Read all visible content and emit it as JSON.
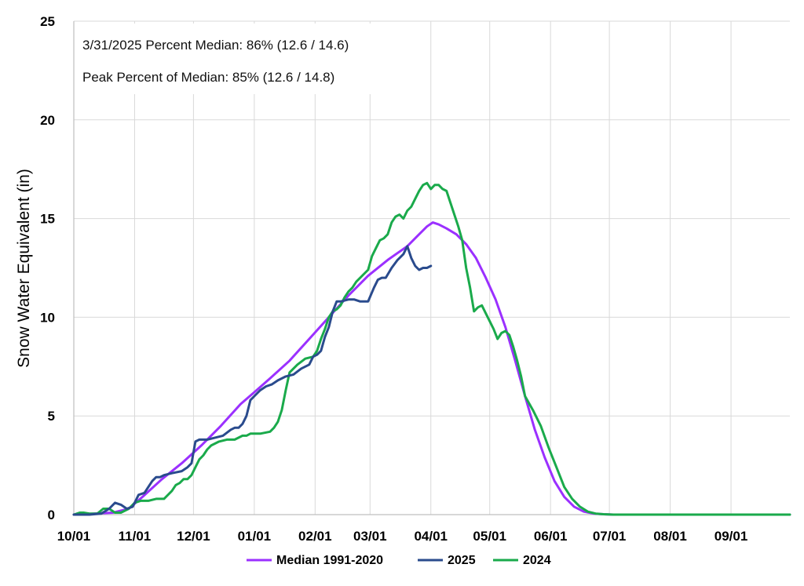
{
  "chart_data": {
    "type": "line",
    "title": "",
    "xlabel": "",
    "ylabel": "Snow Water Equivalent (in)",
    "xlim_days": [
      0,
      365
    ],
    "ylim": [
      0,
      25
    ],
    "y_ticks": [
      0,
      5,
      10,
      15,
      20,
      25
    ],
    "x_ticks": [
      {
        "day": 0,
        "label": "10/01"
      },
      {
        "day": 31,
        "label": "11/01"
      },
      {
        "day": 61,
        "label": "12/01"
      },
      {
        "day": 92,
        "label": "01/01"
      },
      {
        "day": 123,
        "label": "02/01"
      },
      {
        "day": 151,
        "label": "03/01"
      },
      {
        "day": 182,
        "label": "04/01"
      },
      {
        "day": 212,
        "label": "05/01"
      },
      {
        "day": 243,
        "label": "06/01"
      },
      {
        "day": 273,
        "label": "07/01"
      },
      {
        "day": 304,
        "label": "08/01"
      },
      {
        "day": 335,
        "label": "09/01"
      }
    ],
    "grid": true,
    "legend_position": "bottom",
    "annotations": [
      "3/31/2025 Percent Median: 86% (12.6 / 14.6)",
      "Peak Percent of Median: 85% (12.6 / 14.8)"
    ],
    "series": [
      {
        "name": "Median 1991-2020",
        "color": "#9b30ff",
        "x": [
          0,
          10,
          20,
          28,
          35,
          45,
          55,
          65,
          75,
          85,
          92,
          100,
          110,
          120,
          130,
          140,
          150,
          160,
          170,
          175,
          180,
          183,
          186,
          190,
          195,
          200,
          205,
          210,
          215,
          220,
          225,
          230,
          235,
          240,
          245,
          250,
          255,
          260,
          265,
          270,
          275,
          280,
          300,
          330,
          365
        ],
        "y": [
          0,
          0.05,
          0.1,
          0.3,
          0.9,
          1.8,
          2.6,
          3.5,
          4.5,
          5.6,
          6.2,
          6.9,
          7.8,
          8.9,
          10.0,
          11.1,
          12.1,
          12.9,
          13.6,
          14.1,
          14.6,
          14.8,
          14.7,
          14.5,
          14.2,
          13.7,
          13.0,
          12.0,
          10.9,
          9.5,
          7.8,
          6.0,
          4.3,
          2.9,
          1.7,
          0.9,
          0.4,
          0.15,
          0.05,
          0.02,
          0,
          0,
          0,
          0,
          0
        ]
      },
      {
        "name": "2025",
        "color": "#2a4b8d",
        "x": [
          0,
          8,
          14,
          18,
          21,
          24,
          27,
          30,
          33,
          36,
          38,
          40,
          42,
          44,
          46,
          50,
          55,
          58,
          60,
          62,
          64,
          68,
          72,
          76,
          80,
          82,
          84,
          86,
          88,
          90,
          92,
          95,
          98,
          101,
          104,
          108,
          112,
          116,
          120,
          122,
          124,
          126,
          128,
          130,
          132,
          134,
          136,
          140,
          143,
          146,
          150,
          153,
          155,
          157,
          159,
          162,
          165,
          168,
          170,
          172,
          174,
          176,
          178,
          180,
          182
        ],
        "y": [
          0,
          0,
          0.05,
          0.3,
          0.6,
          0.5,
          0.3,
          0.4,
          1.0,
          1.1,
          1.4,
          1.7,
          1.9,
          1.9,
          2.0,
          2.1,
          2.2,
          2.4,
          2.6,
          3.7,
          3.8,
          3.8,
          3.9,
          4.0,
          4.3,
          4.4,
          4.4,
          4.6,
          5.0,
          5.8,
          6.0,
          6.3,
          6.5,
          6.6,
          6.8,
          7.0,
          7.1,
          7.4,
          7.6,
          8.0,
          8.1,
          8.3,
          9.0,
          9.5,
          10.3,
          10.8,
          10.8,
          10.9,
          10.9,
          10.8,
          10.8,
          11.5,
          11.9,
          12.0,
          12.0,
          12.5,
          12.9,
          13.2,
          13.6,
          13.0,
          12.6,
          12.4,
          12.5,
          12.5,
          12.6
        ]
      },
      {
        "name": "2024",
        "color": "#1aaa4b",
        "x": [
          0,
          3,
          5,
          8,
          12,
          15,
          18,
          21,
          24,
          28,
          31,
          34,
          38,
          42,
          46,
          50,
          52,
          54,
          56,
          58,
          60,
          62,
          64,
          66,
          68,
          70,
          74,
          78,
          82,
          86,
          88,
          90,
          95,
          100,
          102,
          104,
          106,
          108,
          110,
          114,
          118,
          122,
          124,
          126,
          128,
          130,
          132,
          134,
          136,
          138,
          140,
          142,
          144,
          146,
          148,
          150,
          152,
          154,
          156,
          158,
          160,
          162,
          164,
          166,
          168,
          170,
          172,
          174,
          176,
          178,
          180,
          182,
          184,
          186,
          188,
          190,
          192,
          194,
          196,
          198,
          200,
          202,
          204,
          206,
          208,
          210,
          212,
          214,
          216,
          218,
          220,
          222,
          224,
          226,
          228,
          230,
          234,
          238,
          242,
          246,
          250,
          254,
          258,
          262,
          266,
          270,
          275,
          280,
          300,
          330,
          365
        ],
        "y": [
          0,
          0.1,
          0.1,
          0.05,
          0.05,
          0.3,
          0.3,
          0.1,
          0.1,
          0.3,
          0.6,
          0.7,
          0.7,
          0.8,
          0.8,
          1.2,
          1.5,
          1.6,
          1.8,
          1.8,
          2.0,
          2.4,
          2.8,
          3.0,
          3.3,
          3.5,
          3.7,
          3.8,
          3.8,
          4.0,
          4.0,
          4.1,
          4.1,
          4.2,
          4.4,
          4.7,
          5.3,
          6.3,
          7.2,
          7.6,
          7.9,
          8.0,
          8.3,
          8.9,
          9.4,
          10.0,
          10.3,
          10.4,
          10.6,
          11.0,
          11.3,
          11.5,
          11.8,
          12.0,
          12.2,
          12.4,
          13.1,
          13.5,
          13.9,
          14.0,
          14.2,
          14.8,
          15.1,
          15.2,
          15.0,
          15.4,
          15.6,
          16.0,
          16.4,
          16.7,
          16.8,
          16.5,
          16.7,
          16.7,
          16.5,
          16.4,
          15.8,
          15.2,
          14.6,
          13.9,
          12.5,
          11.5,
          10.3,
          10.5,
          10.6,
          10.2,
          9.8,
          9.4,
          8.9,
          9.2,
          9.3,
          9.1,
          8.5,
          7.8,
          7.0,
          6.0,
          5.3,
          4.5,
          3.4,
          2.4,
          1.4,
          0.8,
          0.4,
          0.15,
          0.05,
          0.02,
          0,
          0,
          0,
          0,
          0
        ]
      }
    ]
  }
}
